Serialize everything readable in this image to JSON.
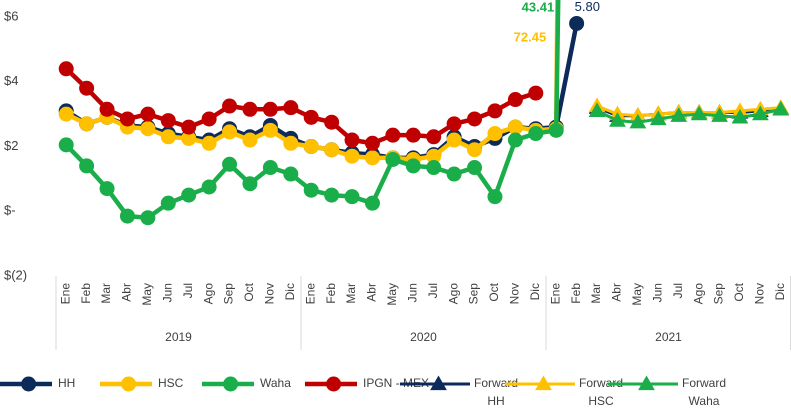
{
  "chart_data": {
    "type": "line",
    "categories": [
      "Ene",
      "Feb",
      "Mar",
      "Abr",
      "May",
      "Jun",
      "Jul",
      "Ago",
      "Sep",
      "Oct",
      "Nov",
      "Dic",
      "Ene",
      "Feb",
      "Mar",
      "Abr",
      "May",
      "Jun",
      "Jul",
      "Ago",
      "Sep",
      "Oct",
      "Nov",
      "Dic",
      "Ene",
      "Feb",
      "Mar",
      "Abr",
      "May",
      "Jun",
      "Jul",
      "Ago",
      "Sep",
      "Oct",
      "Nov",
      "Dic"
    ],
    "category_groups": [
      "2019",
      "2020",
      "2021"
    ],
    "ylim": [
      -2,
      6
    ],
    "yticks": [
      {
        "value": -2,
        "label": "$(2)"
      },
      {
        "value": 0,
        "label": "$-"
      },
      {
        "value": 2,
        "label": "$2"
      },
      {
        "value": 4,
        "label": "$4"
      },
      {
        "value": 6,
        "label": "$6"
      }
    ],
    "grid": false,
    "legend": "bottom",
    "series": [
      {
        "name": "HH",
        "color": "#0c2a5a",
        "marker": "circle",
        "values": [
          3.1,
          2.7,
          2.9,
          2.65,
          2.6,
          2.4,
          2.3,
          2.2,
          2.55,
          2.3,
          2.65,
          2.25,
          2.0,
          1.9,
          1.8,
          1.75,
          1.65,
          1.65,
          1.75,
          2.3,
          2.0,
          2.25,
          2.6,
          2.55,
          2.6,
          5.8,
          null,
          null,
          null,
          null,
          null,
          null,
          null,
          null,
          null,
          null
        ],
        "value_labels": [
          null,
          null,
          null,
          null,
          null,
          null,
          null,
          null,
          null,
          null,
          null,
          null,
          null,
          null,
          null,
          null,
          null,
          null,
          null,
          null,
          null,
          null,
          null,
          null,
          null,
          "5.80",
          null,
          null,
          null,
          null,
          null,
          null,
          null,
          null,
          null,
          null
        ]
      },
      {
        "name": "HSC",
        "color": "#ffc000",
        "marker": "circle",
        "values": [
          3.0,
          2.7,
          2.9,
          2.6,
          2.55,
          2.3,
          2.25,
          2.1,
          2.45,
          2.2,
          2.5,
          2.1,
          2.0,
          1.9,
          1.7,
          1.65,
          1.65,
          1.6,
          1.7,
          2.2,
          1.9,
          2.4,
          2.6,
          2.5,
          2.55,
          72.45,
          null,
          null,
          null,
          null,
          null,
          null,
          null,
          null,
          null,
          null
        ],
        "value_labels": [
          null,
          null,
          null,
          null,
          null,
          null,
          null,
          null,
          null,
          null,
          null,
          null,
          null,
          null,
          null,
          null,
          null,
          null,
          null,
          null,
          null,
          null,
          null,
          null,
          null,
          "72.45",
          null,
          null,
          null,
          null,
          null,
          null,
          null,
          null,
          null,
          null
        ]
      },
      {
        "name": "Waha",
        "color": "#1aae4a",
        "marker": "circle",
        "values": [
          2.05,
          1.4,
          0.7,
          -0.15,
          -0.2,
          0.25,
          0.5,
          0.75,
          1.45,
          0.85,
          1.35,
          1.15,
          0.65,
          0.5,
          0.45,
          0.25,
          1.6,
          1.4,
          1.35,
          1.15,
          1.35,
          0.45,
          2.2,
          2.4,
          2.5,
          43.41,
          null,
          null,
          null,
          null,
          null,
          null,
          null,
          null,
          null,
          null
        ],
        "value_labels": [
          null,
          null,
          null,
          null,
          null,
          null,
          null,
          null,
          null,
          null,
          null,
          null,
          null,
          null,
          null,
          null,
          null,
          null,
          null,
          null,
          null,
          null,
          null,
          null,
          null,
          "43.41",
          null,
          null,
          null,
          null,
          null,
          null,
          null,
          null,
          null,
          null
        ]
      },
      {
        "name": "IPGN - MEX",
        "color": "#c00000",
        "marker": "circle",
        "values": [
          4.4,
          3.8,
          3.15,
          2.85,
          3.0,
          2.8,
          2.6,
          2.85,
          3.25,
          3.15,
          3.15,
          3.2,
          2.9,
          2.75,
          2.2,
          2.1,
          2.35,
          2.35,
          2.3,
          2.7,
          2.85,
          3.1,
          3.45,
          3.65,
          null,
          null,
          null,
          null,
          null,
          null,
          null,
          null,
          null,
          null,
          null,
          null
        ]
      },
      {
        "name": "Forward HH",
        "color": "#0c2a5a",
        "marker": "triangle",
        "values": [
          null,
          null,
          null,
          null,
          null,
          null,
          null,
          null,
          null,
          null,
          null,
          null,
          null,
          null,
          null,
          null,
          null,
          null,
          null,
          null,
          null,
          null,
          null,
          null,
          null,
          null,
          3.2,
          2.95,
          2.95,
          3.0,
          3.05,
          3.05,
          3.05,
          3.05,
          3.1,
          3.15
        ]
      },
      {
        "name": "Forward HSC",
        "color": "#ffc000",
        "marker": "triangle",
        "values": [
          null,
          null,
          null,
          null,
          null,
          null,
          null,
          null,
          null,
          null,
          null,
          null,
          null,
          null,
          null,
          null,
          null,
          null,
          null,
          null,
          null,
          null,
          null,
          null,
          null,
          null,
          3.25,
          3.0,
          2.95,
          3.0,
          3.05,
          3.05,
          3.05,
          3.1,
          3.15,
          3.2
        ]
      },
      {
        "name": "Forward Waha",
        "color": "#1aae4a",
        "marker": "triangle",
        "values": [
          null,
          null,
          null,
          null,
          null,
          null,
          null,
          null,
          null,
          null,
          null,
          null,
          null,
          null,
          null,
          null,
          null,
          null,
          null,
          null,
          null,
          null,
          null,
          null,
          null,
          null,
          3.1,
          2.8,
          2.75,
          2.85,
          2.95,
          3.0,
          2.95,
          2.9,
          3.0,
          3.15
        ]
      }
    ]
  }
}
